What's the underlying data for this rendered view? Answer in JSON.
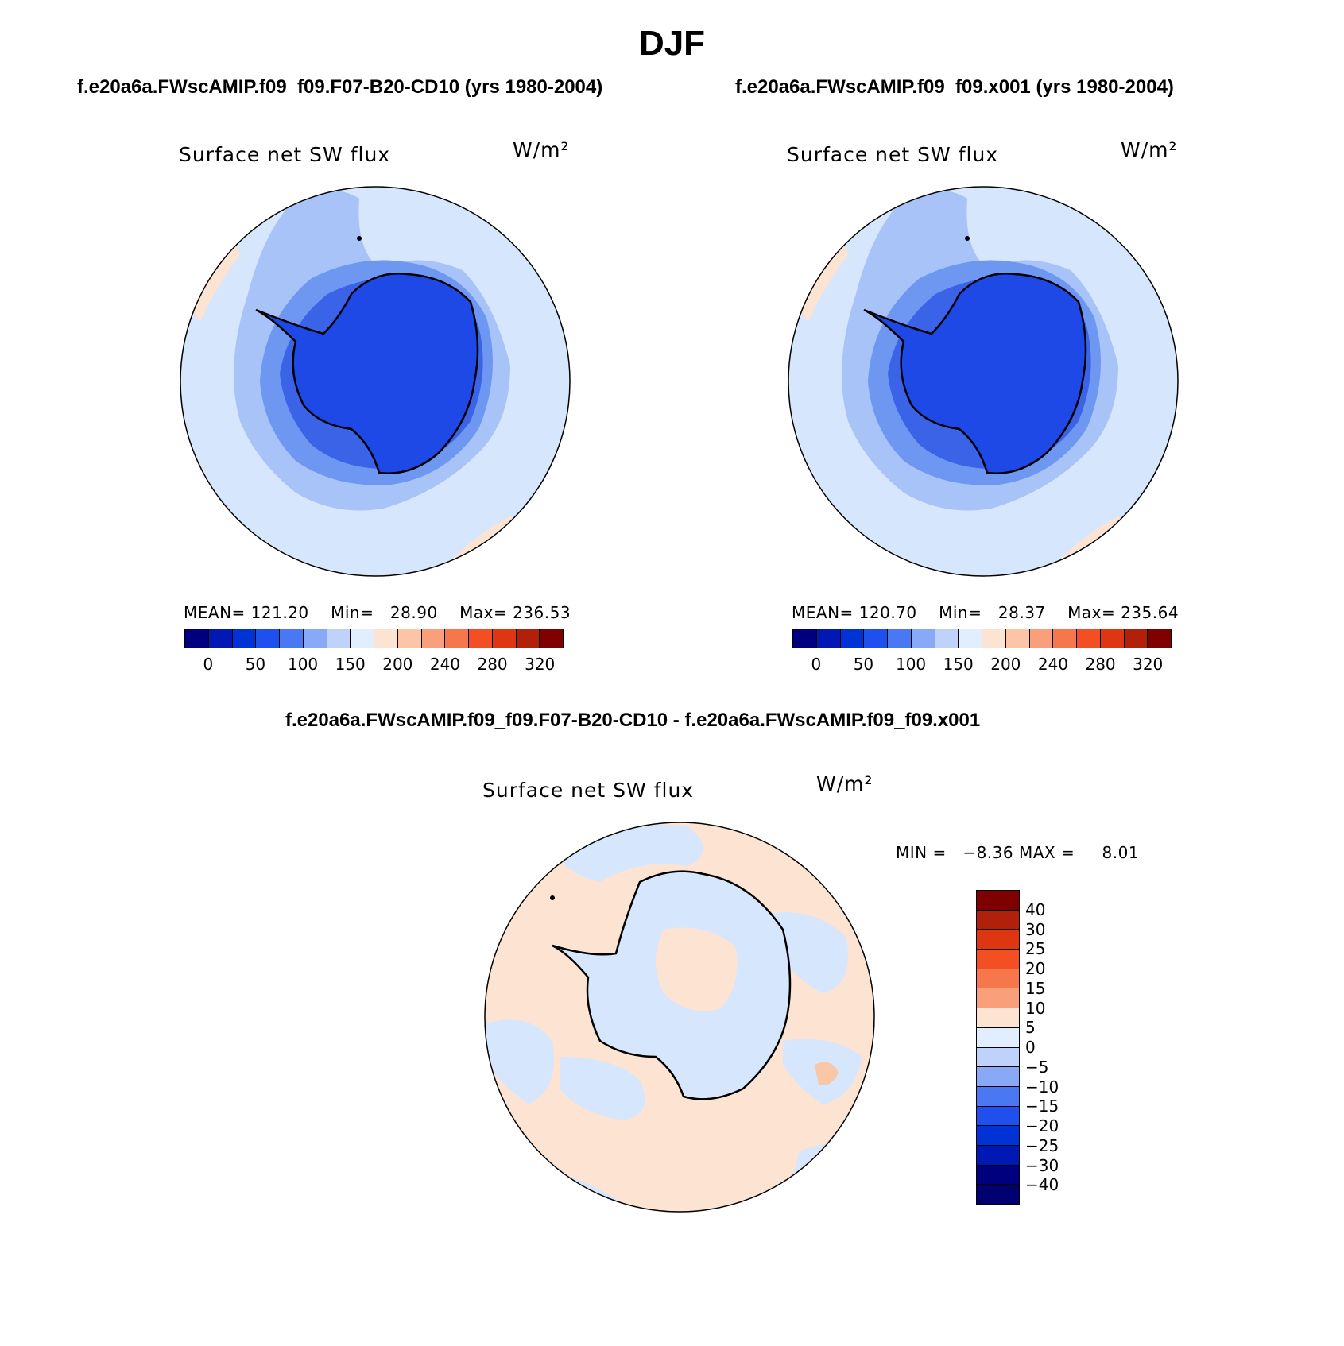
{
  "season": "DJF",
  "panels": [
    {
      "run_title": "f.e20a6a.FWscAMIP.f09_f09.F07-B20-CD10 (yrs 1980-2004)",
      "variable": "Surface net SW flux",
      "units": "W/m²",
      "stats": {
        "mean_label": "MEAN=",
        "mean": "121.20",
        "min_label": "Min=",
        "min": "28.90",
        "max_label": "Max=",
        "max": "236.53"
      }
    },
    {
      "run_title": "f.e20a6a.FWscAMIP.f09_f09.x001 (yrs 1980-2004)",
      "variable": "Surface net SW flux",
      "units": "W/m²",
      "stats": {
        "mean_label": "MEAN=",
        "mean": "120.70",
        "min_label": "Min=",
        "min": "28.37",
        "max_label": "Max=",
        "max": "235.64"
      }
    }
  ],
  "colorbar_abs": {
    "colors": [
      "#00007f",
      "#0018b4",
      "#0033d6",
      "#1f4fee",
      "#4a77f2",
      "#88a9f5",
      "#bfd3fa",
      "#e1eefd",
      "#fde4d2",
      "#fcc5a8",
      "#f9a07b",
      "#f7774d",
      "#f24f22",
      "#de3610",
      "#b0200a",
      "#7f0000"
    ],
    "tick_labels": [
      "0",
      "50",
      "100",
      "150",
      "200",
      "240",
      "280",
      "320"
    ]
  },
  "diff_panel": {
    "title": "f.e20a6a.FWscAMIP.f09_f09.F07-B20-CD10 - f.e20a6a.FWscAMIP.f09_f09.x001",
    "variable": "Surface net SW flux",
    "units": "W/m²",
    "min_label": "MIN =",
    "min": "−8.36",
    "max_label": "MAX =",
    "max": "8.01"
  },
  "colorbar_diff": {
    "colors": [
      "#7f0000",
      "#b0200a",
      "#de3610",
      "#f24f22",
      "#f7774d",
      "#f9a07b",
      "#fde4d2",
      "#e1eefd",
      "#bfd3fa",
      "#88a9f5",
      "#4a77f2",
      "#1f4fee",
      "#0033d6",
      "#0018b4",
      "#00007f",
      "#000070"
    ],
    "tick_labels": [
      "40",
      "30",
      "25",
      "20",
      "15",
      "10",
      "5",
      "0",
      "−5",
      "−10",
      "−15",
      "−20",
      "−25",
      "−30",
      "−40"
    ]
  },
  "map_colors": {
    "ocean_light": "#d5e6fd",
    "band_mid": "#a8c3f7",
    "band_deep": "#6e97f1",
    "coast_blue": "#3a63e8",
    "continent": "#1f49e6",
    "warm": "#fde4d2",
    "warm_strong": "#f9c6a6"
  }
}
